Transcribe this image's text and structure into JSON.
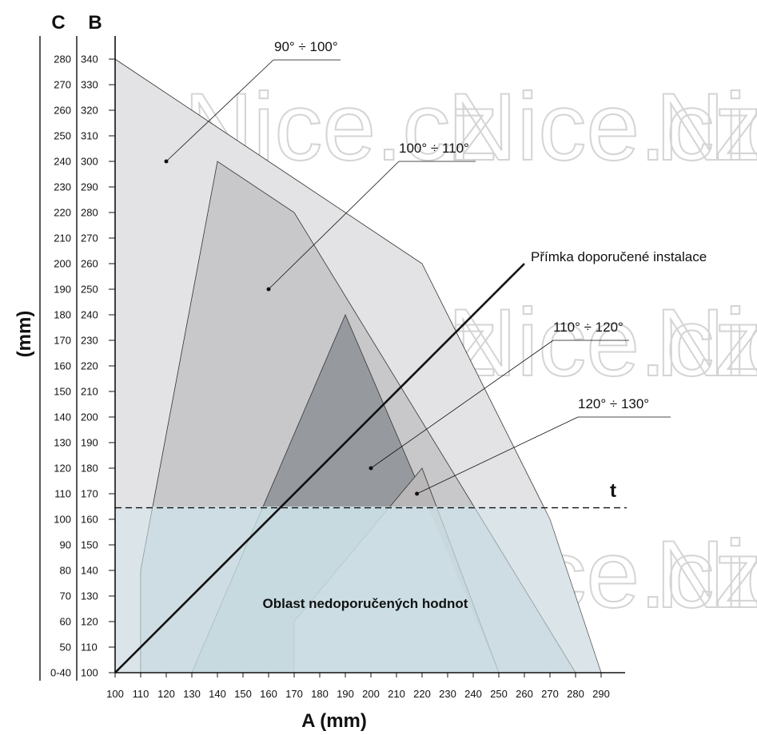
{
  "chart_data": {
    "type": "area",
    "x_axis": {
      "label": "A (mm)",
      "range": [
        100,
        290
      ],
      "ticks": [
        100,
        110,
        120,
        130,
        140,
        150,
        160,
        170,
        180,
        190,
        200,
        210,
        220,
        230,
        240,
        250,
        260,
        270,
        280,
        290
      ]
    },
    "y_axis_B": {
      "label": "B",
      "range": [
        100,
        340
      ],
      "ticks": [
        100,
        110,
        120,
        130,
        140,
        150,
        160,
        170,
        180,
        190,
        200,
        210,
        220,
        230,
        240,
        250,
        260,
        270,
        280,
        290,
        300,
        310,
        320,
        330,
        340
      ]
    },
    "y_axis_C": {
      "label": "C",
      "ticks": [
        "0-40",
        "50",
        "60",
        "70",
        "80",
        "90",
        "100",
        "110",
        "120",
        "130",
        "140",
        "150",
        "160",
        "170",
        "180",
        "190",
        "200",
        "210",
        "220",
        "230",
        "240",
        "250",
        "260",
        "270",
        "280"
      ]
    },
    "y_unit_label": "(mm)",
    "series": [
      {
        "name": "90° ÷ 100°",
        "polygon": [
          [
            100,
            340
          ],
          [
            220,
            260
          ],
          [
            270,
            160
          ],
          [
            290,
            100
          ],
          [
            100,
            100
          ]
        ]
      },
      {
        "name": "100° ÷ 110°",
        "polygon": [
          [
            110,
            100
          ],
          [
            110,
            140
          ],
          [
            140,
            300
          ],
          [
            170,
            280
          ],
          [
            280,
            100
          ]
        ]
      },
      {
        "name": "110° ÷ 120°",
        "polygon": [
          [
            130,
            100
          ],
          [
            190,
            240
          ],
          [
            250,
            100
          ]
        ]
      },
      {
        "name": "120° ÷ 130°",
        "polygon": [
          [
            170,
            100
          ],
          [
            170,
            120
          ],
          [
            220,
            180
          ],
          [
            250,
            100
          ]
        ]
      }
    ],
    "recommended_line": {
      "label": "Přímka doporučené instalace",
      "from": [
        100,
        100
      ],
      "to": [
        260,
        260
      ]
    },
    "threshold_line": {
      "label": "t",
      "y": 164.5
    },
    "region_note": "Oblast nedoporučených hodnot",
    "colors": {
      "band_90_100": "#e3e3e5",
      "band_100_110": "#c8c8ca",
      "band_110_120": "#969a9f",
      "band_120_130": "#b9b7b8",
      "below_threshold_overlay": "#d0e6ee"
    }
  },
  "watermark": "Nice.cz"
}
